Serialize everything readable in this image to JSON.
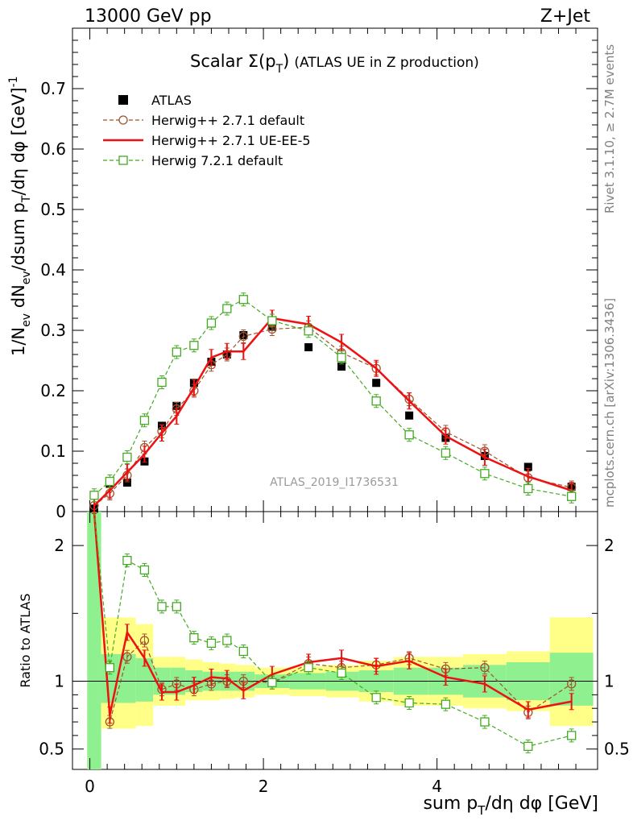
{
  "header": {
    "left": "13000 GeV pp",
    "right": "Z+Jet"
  },
  "side_text": {
    "rivet": "Rivet 3.1.10, ≥ 2.7M events",
    "mcplots": "mcplots.cern.ch [arXiv:1306.3436]"
  },
  "watermark": "ATLAS_2019_I1736531",
  "title": {
    "main": "Scalar Σ(p",
    "sub": "T",
    "end": ")",
    "note": "(ATLAS UE in Z production)"
  },
  "axis_labels": {
    "ylabel_top": "1/N_ev dN_ev/dsum p_T/dη dφ [GeV]^-1",
    "ylabel_bottom": "Ratio to ATLAS",
    "xlabel": "sum p_T/dη dφ [GeV]"
  },
  "colors": {
    "atlas": "#000000",
    "herwig_default": "#a0522d",
    "herwig_ueee5": "#ee1111",
    "herwig72": "#44aa22",
    "band_inner": "#8ef08e",
    "band_outer": "#ffff88"
  },
  "legend": [
    {
      "label": "ATLAS",
      "key": "atlas"
    },
    {
      "label": "Herwig++ 2.7.1 default",
      "key": "herwig_default"
    },
    {
      "label": "Herwig++ 2.7.1 UE-EE-5",
      "key": "herwig_ueee5"
    },
    {
      "label": "Herwig 7.2.1 default",
      "key": "herwig72"
    }
  ],
  "chart_data": [
    {
      "type": "scatter",
      "title": "Scalar Σ(pT) (ATLAS UE in Z production)",
      "xlabel": "sum p_T/dη dφ [GeV]",
      "ylabel": "1/N_ev dN_ev/dsum p_T/dη dφ [GeV]^-1",
      "xlim": [
        -0.2,
        5.85
      ],
      "ylim": [
        0,
        0.8
      ],
      "yticks": [
        0,
        0.1,
        0.2,
        0.3,
        0.4,
        0.5,
        0.6,
        0.7
      ],
      "ytick_labels": [
        "0",
        "0.1",
        "0.2",
        "0.3",
        "0.4",
        "0.5",
        "0.6",
        "0.7"
      ],
      "x": [
        0.05,
        0.23,
        0.43,
        0.63,
        0.83,
        1.0,
        1.2,
        1.4,
        1.58,
        1.77,
        2.1,
        2.52,
        2.9,
        3.3,
        3.68,
        4.1,
        4.55,
        5.05,
        5.55
      ],
      "series": [
        {
          "name": "ATLAS",
          "key": "atlas",
          "values": [
            0.005,
            0.046,
            0.048,
            0.083,
            0.142,
            0.175,
            0.213,
            0.248,
            0.26,
            0.292,
            0.306,
            0.272,
            0.24,
            0.213,
            0.159,
            0.122,
            0.092,
            0.074,
            0.041
          ]
        },
        {
          "name": "Herwig++ 2.7.1 default",
          "key": "herwig_default",
          "values": [
            0.01,
            0.03,
            0.06,
            0.106,
            0.133,
            0.17,
            0.2,
            0.243,
            0.26,
            0.29,
            0.302,
            0.305,
            0.263,
            0.237,
            0.186,
            0.132,
            0.1,
            0.056,
            0.04
          ]
        },
        {
          "name": "Herwig++ 2.7.1 UE-EE-5",
          "key": "herwig_ueee5",
          "values": [
            0.01,
            0.035,
            0.065,
            0.095,
            0.13,
            0.158,
            0.205,
            0.255,
            0.265,
            0.265,
            0.32,
            0.31,
            0.28,
            0.237,
            0.183,
            0.125,
            0.09,
            0.058,
            0.035
          ]
        },
        {
          "name": "Herwig 7.2.1 default",
          "key": "herwig72",
          "values": [
            0.027,
            0.05,
            0.09,
            0.151,
            0.214,
            0.264,
            0.275,
            0.312,
            0.336,
            0.351,
            0.316,
            0.299,
            0.255,
            0.183,
            0.127,
            0.097,
            0.063,
            0.038,
            0.025
          ]
        }
      ]
    },
    {
      "type": "scatter",
      "title": "",
      "xlabel": "sum p_T/dη dφ [GeV]",
      "ylabel": "Ratio to ATLAS",
      "xlim": [
        -0.2,
        5.85
      ],
      "ylim": [
        0.35,
        2.25
      ],
      "xticks": [
        0,
        2,
        4
      ],
      "xtick_labels": [
        "0",
        "2",
        "4"
      ],
      "yticks": [
        0.5,
        1,
        2
      ],
      "ytick_labels": [
        "0.5",
        "1",
        "2"
      ],
      "x": [
        0.05,
        0.23,
        0.43,
        0.63,
        0.83,
        1.0,
        1.2,
        1.4,
        1.58,
        1.77,
        2.1,
        2.52,
        2.9,
        3.3,
        3.68,
        4.1,
        4.55,
        5.05,
        5.55
      ],
      "bins": [
        [
          -0.03,
          0.13
        ],
        [
          0.13,
          0.33
        ],
        [
          0.33,
          0.53
        ],
        [
          0.53,
          0.73
        ],
        [
          0.73,
          0.93
        ],
        [
          0.93,
          1.1
        ],
        [
          1.1,
          1.3
        ],
        [
          1.3,
          1.5
        ],
        [
          1.5,
          1.68
        ],
        [
          1.68,
          1.9
        ],
        [
          1.9,
          2.3
        ],
        [
          2.3,
          2.72
        ],
        [
          2.72,
          3.1
        ],
        [
          3.1,
          3.5
        ],
        [
          3.5,
          3.9
        ],
        [
          3.9,
          4.3
        ],
        [
          4.3,
          4.8
        ],
        [
          4.8,
          5.3
        ],
        [
          5.3,
          5.8
        ]
      ],
      "band_inner": [
        [
          0.35,
          2.3
        ],
        [
          0.84,
          1.2
        ],
        [
          0.84,
          1.2
        ],
        [
          0.85,
          1.17
        ],
        [
          0.9,
          1.1
        ],
        [
          0.9,
          1.1
        ],
        [
          0.92,
          1.08
        ],
        [
          0.93,
          1.07
        ],
        [
          0.93,
          1.07
        ],
        [
          0.93,
          1.07
        ],
        [
          0.95,
          1.05
        ],
        [
          0.94,
          1.06
        ],
        [
          0.93,
          1.07
        ],
        [
          0.92,
          1.08
        ],
        [
          0.9,
          1.1
        ],
        [
          0.9,
          1.1
        ],
        [
          0.88,
          1.12
        ],
        [
          0.86,
          1.14
        ],
        [
          0.82,
          1.21
        ]
      ],
      "band_outer": [
        [
          0.35,
          2.3
        ],
        [
          0.65,
          1.47
        ],
        [
          0.65,
          1.47
        ],
        [
          0.67,
          1.42
        ],
        [
          0.82,
          1.18
        ],
        [
          0.82,
          1.18
        ],
        [
          0.86,
          1.16
        ],
        [
          0.86,
          1.14
        ],
        [
          0.87,
          1.13
        ],
        [
          0.88,
          1.12
        ],
        [
          0.9,
          1.1
        ],
        [
          0.89,
          1.11
        ],
        [
          0.88,
          1.12
        ],
        [
          0.85,
          1.15
        ],
        [
          0.82,
          1.18
        ],
        [
          0.82,
          1.18
        ],
        [
          0.8,
          1.2
        ],
        [
          0.78,
          1.22
        ],
        [
          0.67,
          1.47
        ]
      ],
      "series": [
        {
          "name": "Herwig++ 2.7.1 default",
          "key": "herwig_default",
          "values": [
            2.3,
            0.7,
            1.18,
            1.3,
            0.94,
            0.98,
            0.94,
            0.98,
            1.0,
            1.0,
            0.99,
            1.13,
            1.1,
            1.12,
            1.17,
            1.09,
            1.1,
            0.77,
            0.98
          ]
        },
        {
          "name": "Herwig++ 2.7.1 UE-EE-5",
          "key": "herwig_ueee5",
          "values": [
            2.3,
            0.75,
            1.36,
            1.17,
            0.92,
            0.92,
            0.97,
            1.03,
            1.02,
            0.93,
            1.05,
            1.14,
            1.17,
            1.11,
            1.15,
            1.03,
            0.98,
            0.79,
            0.85
          ]
        },
        {
          "name": "Herwig 7.2.1 default",
          "key": "herwig72",
          "values": [
            2.3,
            1.1,
            1.89,
            1.82,
            1.55,
            1.55,
            1.32,
            1.28,
            1.3,
            1.22,
            0.99,
            1.1,
            1.06,
            0.88,
            0.84,
            0.83,
            0.7,
            0.52,
            0.6
          ]
        }
      ]
    }
  ]
}
